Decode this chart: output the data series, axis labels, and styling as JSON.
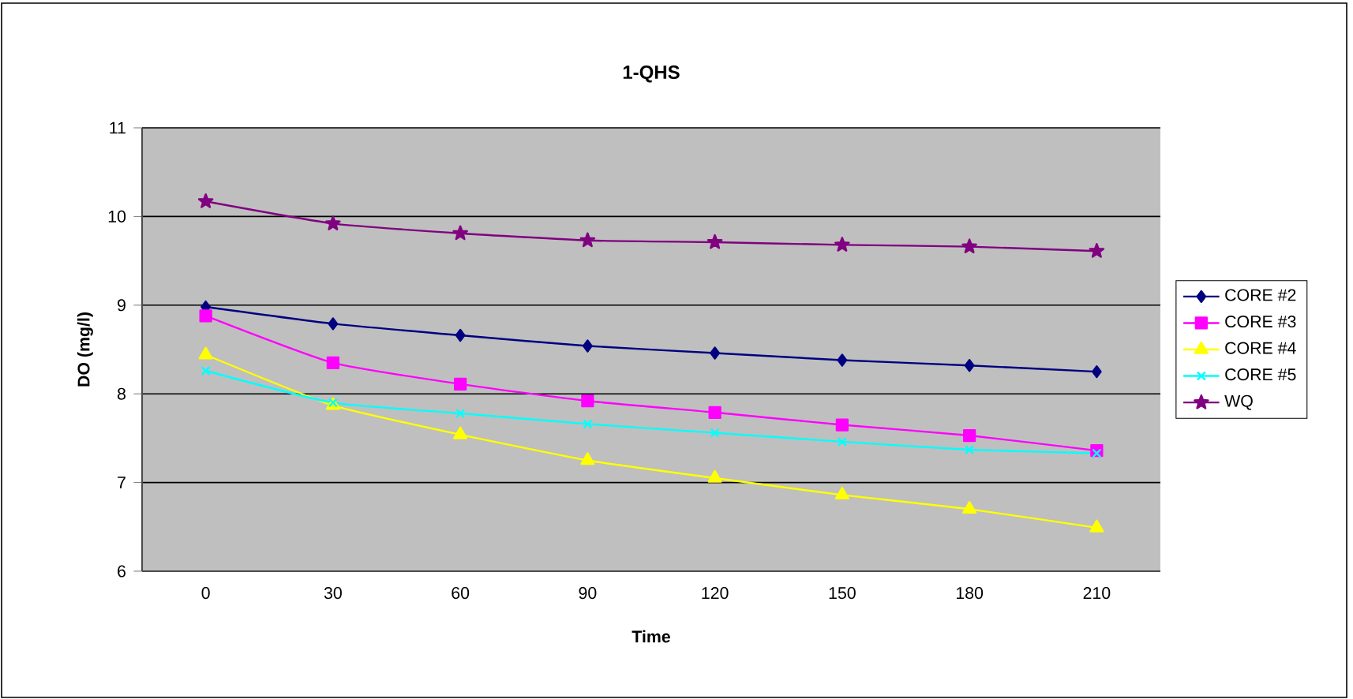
{
  "chart_data": {
    "type": "line",
    "title": "1-QHS",
    "xlabel": "Time",
    "ylabel": "DO (mg/l)",
    "categories": [
      "0",
      "30",
      "60",
      "90",
      "120",
      "150",
      "180",
      "210"
    ],
    "series": [
      {
        "name": "CORE #2",
        "color": "#000080",
        "marker": "diamond",
        "values": [
          8.98,
          8.79,
          8.66,
          8.54,
          8.46,
          8.38,
          8.32,
          8.25
        ]
      },
      {
        "name": "CORE #3",
        "color": "#ff00ff",
        "marker": "square",
        "values": [
          8.88,
          8.35,
          8.11,
          7.92,
          7.79,
          7.65,
          7.53,
          7.36
        ]
      },
      {
        "name": "CORE #4",
        "color": "#ffff00",
        "marker": "triangle",
        "values": [
          8.44,
          7.87,
          7.54,
          7.25,
          7.05,
          6.86,
          6.7,
          6.49
        ]
      },
      {
        "name": "CORE #5",
        "color": "#00ffff",
        "marker": "cross",
        "values": [
          8.26,
          7.9,
          7.78,
          7.66,
          7.56,
          7.46,
          7.37,
          7.33
        ]
      },
      {
        "name": "WQ",
        "color": "#800080",
        "marker": "star",
        "values": [
          10.17,
          9.92,
          9.81,
          9.73,
          9.71,
          9.68,
          9.66,
          9.61
        ]
      }
    ],
    "ylim": [
      6,
      11
    ],
    "yticks": [
      6,
      7,
      8,
      9,
      10,
      11
    ],
    "grid": "y",
    "legend": "right",
    "line_style": "solid"
  }
}
